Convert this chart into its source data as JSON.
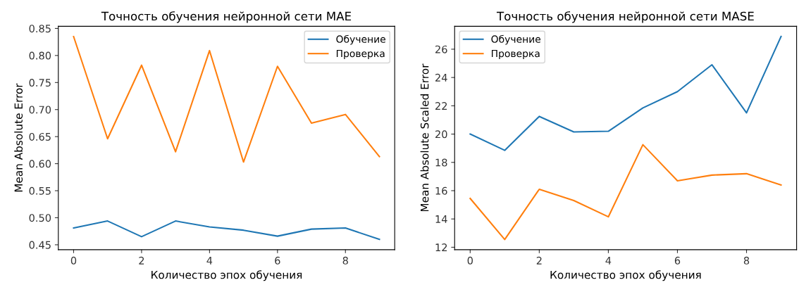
{
  "chart_data": [
    {
      "type": "line",
      "title": "Точность обучения нейронной сети MAE",
      "xlabel": "Количество эпох обучения",
      "ylabel": "Mean Absolute Error",
      "x": [
        0,
        1,
        2,
        3,
        4,
        5,
        6,
        7,
        8,
        9
      ],
      "series": [
        {
          "name": "Обучение",
          "color": "#1f77b4",
          "values": [
            0.481,
            0.494,
            0.465,
            0.494,
            0.483,
            0.477,
            0.466,
            0.479,
            0.481,
            0.46
          ]
        },
        {
          "name": "Проверка",
          "color": "#ff7f0e",
          "values": [
            0.835,
            0.646,
            0.782,
            0.622,
            0.809,
            0.603,
            0.78,
            0.675,
            0.691,
            0.613
          ]
        }
      ],
      "xlim": [
        -0.45,
        9.45
      ],
      "xticks": [
        0,
        2,
        4,
        6,
        8
      ],
      "ylim": [
        0.441,
        0.854
      ],
      "yticks": [
        {
          "value": 0.45,
          "label": "0.45"
        },
        {
          "value": 0.5,
          "label": "0.50"
        },
        {
          "value": 0.55,
          "label": "0.55"
        },
        {
          "value": 0.6,
          "label": "0.60"
        },
        {
          "value": 0.65,
          "label": "0.65"
        },
        {
          "value": 0.7,
          "label": "0.70"
        },
        {
          "value": 0.75,
          "label": "0.75"
        },
        {
          "value": 0.8,
          "label": "0.80"
        },
        {
          "value": 0.85,
          "label": "0.85"
        }
      ],
      "legend": "top right",
      "grid": false,
      "line_style": "solid"
    },
    {
      "type": "line",
      "title": "Точность обучения нейронной сети MASE",
      "xlabel": "Количество эпох обучения",
      "ylabel": "Mean Absolute Scaled Error",
      "x": [
        0,
        1,
        2,
        3,
        4,
        5,
        6,
        7,
        8,
        9
      ],
      "series": [
        {
          "name": "Обучение",
          "color": "#1f77b4",
          "values": [
            20.0,
            18.85,
            21.25,
            20.15,
            20.2,
            21.85,
            23.0,
            24.9,
            21.5,
            26.9
          ]
        },
        {
          "name": "Проверка",
          "color": "#ff7f0e",
          "values": [
            15.45,
            12.55,
            16.1,
            15.3,
            14.15,
            19.25,
            16.7,
            17.1,
            17.2,
            16.4
          ]
        }
      ],
      "xlim": [
        -0.45,
        9.45
      ],
      "xticks": [
        0,
        2,
        4,
        6,
        8
      ],
      "ylim": [
        11.83,
        27.62
      ],
      "yticks": [
        12,
        14,
        16,
        18,
        20,
        22,
        24,
        26
      ],
      "legend": "top left",
      "grid": false,
      "line_style": "solid"
    }
  ]
}
